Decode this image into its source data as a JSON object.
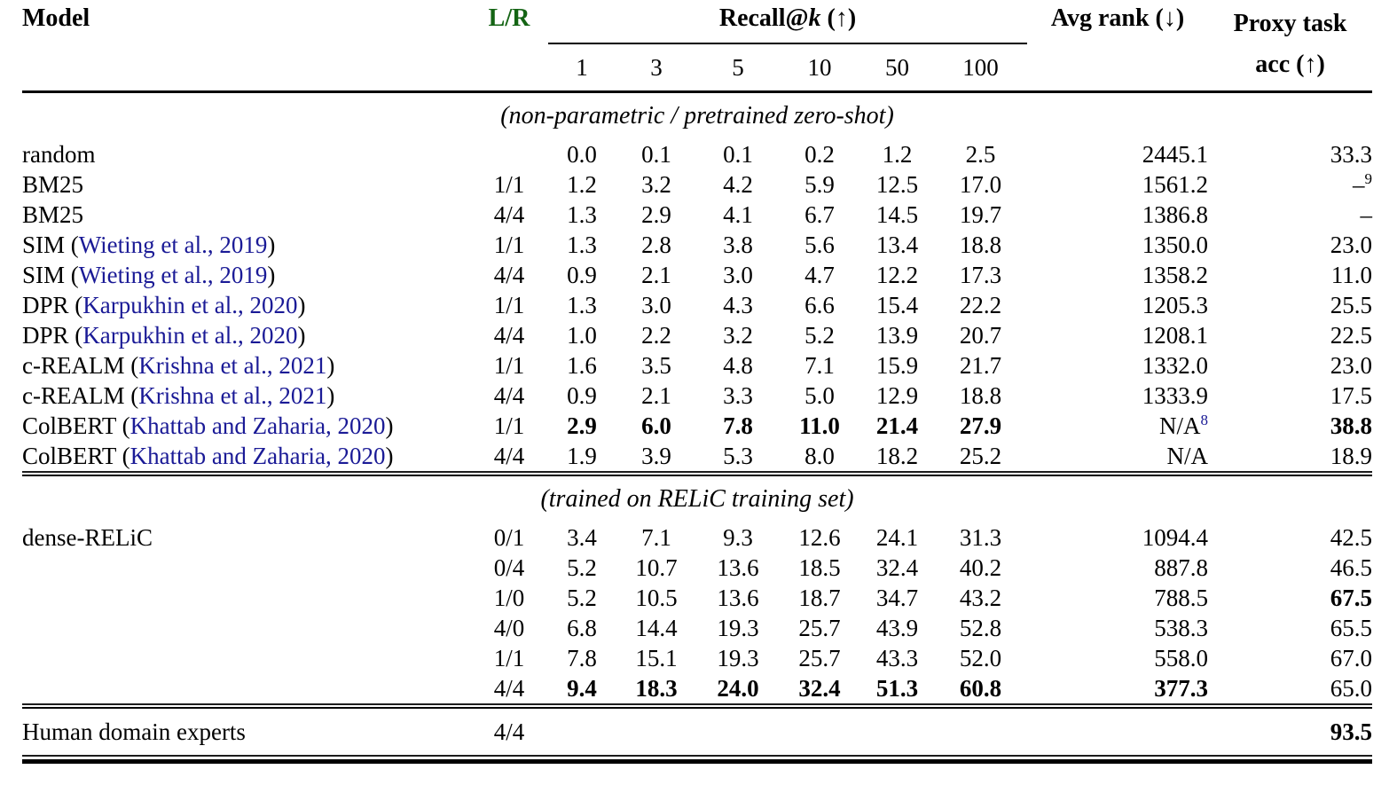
{
  "colors": {
    "header_green": "#146414",
    "citation_blue": "#1a1a96",
    "text_black": "#000000"
  },
  "header": {
    "model": "Model",
    "lr": "L/R",
    "recall_prefix": "Recall@",
    "recall_k": "k",
    "recall_suffix": " (↑)",
    "recall_ks": [
      "1",
      "3",
      "5",
      "10",
      "50",
      "100"
    ],
    "avg_rank": "Avg rank (↓)",
    "proxy_line1": "Proxy task",
    "proxy_line2": "acc (↑)"
  },
  "sections": [
    {
      "label": "(non-parametric / pretrained zero-shot)",
      "rows": [
        {
          "model": {
            "pre": "random",
            "cite": "",
            "post": ""
          },
          "lr": "",
          "recall": [
            "0.0",
            "0.1",
            "0.1",
            "0.2",
            "1.2",
            "2.5"
          ],
          "recall_bold": false,
          "avg": "2445.1",
          "avg_sup": "",
          "avg_bold": false,
          "proxy": "33.3",
          "proxy_sup": "",
          "proxy_bold": false
        },
        {
          "model": {
            "pre": "BM25",
            "cite": "",
            "post": ""
          },
          "lr": "1/1",
          "recall": [
            "1.2",
            "3.2",
            "4.2",
            "5.9",
            "12.5",
            "17.0"
          ],
          "recall_bold": false,
          "avg": "1561.2",
          "avg_sup": "",
          "avg_bold": false,
          "proxy": "–",
          "proxy_sup": "9",
          "proxy_bold": false
        },
        {
          "model": {
            "pre": "BM25",
            "cite": "",
            "post": ""
          },
          "lr": "4/4",
          "recall": [
            "1.3",
            "2.9",
            "4.1",
            "6.7",
            "14.5",
            "19.7"
          ],
          "recall_bold": false,
          "avg": "1386.8",
          "avg_sup": "",
          "avg_bold": false,
          "proxy": "–",
          "proxy_sup": "",
          "proxy_bold": false
        },
        {
          "model": {
            "pre": "SIM (",
            "cite": "Wieting et al., 2019",
            "post": ")"
          },
          "lr": "1/1",
          "recall": [
            "1.3",
            "2.8",
            "3.8",
            "5.6",
            "13.4",
            "18.8"
          ],
          "recall_bold": false,
          "avg": "1350.0",
          "avg_sup": "",
          "avg_bold": false,
          "proxy": "23.0",
          "proxy_sup": "",
          "proxy_bold": false
        },
        {
          "model": {
            "pre": "SIM (",
            "cite": "Wieting et al., 2019",
            "post": ")"
          },
          "lr": "4/4",
          "recall": [
            "0.9",
            "2.1",
            "3.0",
            "4.7",
            "12.2",
            "17.3"
          ],
          "recall_bold": false,
          "avg": "1358.2",
          "avg_sup": "",
          "avg_bold": false,
          "proxy": "11.0",
          "proxy_sup": "",
          "proxy_bold": false
        },
        {
          "model": {
            "pre": "DPR (",
            "cite": "Karpukhin et al., 2020",
            "post": ")"
          },
          "lr": "1/1",
          "recall": [
            "1.3",
            "3.0",
            "4.3",
            "6.6",
            "15.4",
            "22.2"
          ],
          "recall_bold": false,
          "avg": "1205.3",
          "avg_sup": "",
          "avg_bold": false,
          "proxy": "25.5",
          "proxy_sup": "",
          "proxy_bold": false
        },
        {
          "model": {
            "pre": "DPR (",
            "cite": "Karpukhin et al., 2020",
            "post": ")"
          },
          "lr": "4/4",
          "recall": [
            "1.0",
            "2.2",
            "3.2",
            "5.2",
            "13.9",
            "20.7"
          ],
          "recall_bold": false,
          "avg": "1208.1",
          "avg_sup": "",
          "avg_bold": false,
          "proxy": "22.5",
          "proxy_sup": "",
          "proxy_bold": false
        },
        {
          "model": {
            "pre": "c-REALM (",
            "cite": "Krishna et al., 2021",
            "post": ")"
          },
          "lr": "1/1",
          "recall": [
            "1.6",
            "3.5",
            "4.8",
            "7.1",
            "15.9",
            "21.7"
          ],
          "recall_bold": false,
          "avg": "1332.0",
          "avg_sup": "",
          "avg_bold": false,
          "proxy": "23.0",
          "proxy_sup": "",
          "proxy_bold": false
        },
        {
          "model": {
            "pre": "c-REALM (",
            "cite": "Krishna et al., 2021",
            "post": ")"
          },
          "lr": "4/4",
          "recall": [
            "0.9",
            "2.1",
            "3.3",
            "5.0",
            "12.9",
            "18.8"
          ],
          "recall_bold": false,
          "avg": "1333.9",
          "avg_sup": "",
          "avg_bold": false,
          "proxy": "17.5",
          "proxy_sup": "",
          "proxy_bold": false
        },
        {
          "model": {
            "pre": "ColBERT (",
            "cite": "Khattab and Zaharia, 2020",
            "post": ")"
          },
          "lr": "1/1",
          "recall": [
            "2.9",
            "6.0",
            "7.8",
            "11.0",
            "21.4",
            "27.9"
          ],
          "recall_bold": true,
          "avg": "N/A",
          "avg_sup": "8",
          "avg_bold": false,
          "proxy": "38.8",
          "proxy_sup": "",
          "proxy_bold": true
        },
        {
          "model": {
            "pre": "ColBERT (",
            "cite": "Khattab and Zaharia, 2020",
            "post": ")"
          },
          "lr": "4/4",
          "recall": [
            "1.9",
            "3.9",
            "5.3",
            "8.0",
            "18.2",
            "25.2"
          ],
          "recall_bold": false,
          "avg": "N/A",
          "avg_sup": "",
          "avg_bold": false,
          "proxy": "18.9",
          "proxy_sup": "",
          "proxy_bold": false
        }
      ]
    },
    {
      "label": "(trained on RELiC training set)",
      "rows": [
        {
          "model": {
            "pre": "dense-RELiC",
            "cite": "",
            "post": ""
          },
          "lr": "0/1",
          "recall": [
            "3.4",
            "7.1",
            "9.3",
            "12.6",
            "24.1",
            "31.3"
          ],
          "recall_bold": false,
          "avg": "1094.4",
          "avg_sup": "",
          "avg_bold": false,
          "proxy": "42.5",
          "proxy_sup": "",
          "proxy_bold": false
        },
        {
          "model": {
            "pre": "",
            "cite": "",
            "post": ""
          },
          "lr": "0/4",
          "recall": [
            "5.2",
            "10.7",
            "13.6",
            "18.5",
            "32.4",
            "40.2"
          ],
          "recall_bold": false,
          "avg": "887.8",
          "avg_sup": "",
          "avg_bold": false,
          "proxy": "46.5",
          "proxy_sup": "",
          "proxy_bold": false
        },
        {
          "model": {
            "pre": "",
            "cite": "",
            "post": ""
          },
          "lr": "1/0",
          "recall": [
            "5.2",
            "10.5",
            "13.6",
            "18.7",
            "34.7",
            "43.2"
          ],
          "recall_bold": false,
          "avg": "788.5",
          "avg_sup": "",
          "avg_bold": false,
          "proxy": "67.5",
          "proxy_sup": "",
          "proxy_bold": true
        },
        {
          "model": {
            "pre": "",
            "cite": "",
            "post": ""
          },
          "lr": "4/0",
          "recall": [
            "6.8",
            "14.4",
            "19.3",
            "25.7",
            "43.9",
            "52.8"
          ],
          "recall_bold": false,
          "avg": "538.3",
          "avg_sup": "",
          "avg_bold": false,
          "proxy": "65.5",
          "proxy_sup": "",
          "proxy_bold": false
        },
        {
          "model": {
            "pre": "",
            "cite": "",
            "post": ""
          },
          "lr": "1/1",
          "recall": [
            "7.8",
            "15.1",
            "19.3",
            "25.7",
            "43.3",
            "52.0"
          ],
          "recall_bold": false,
          "avg": "558.0",
          "avg_sup": "",
          "avg_bold": false,
          "proxy": "67.0",
          "proxy_sup": "",
          "proxy_bold": false
        },
        {
          "model": {
            "pre": "",
            "cite": "",
            "post": ""
          },
          "lr": "4/4",
          "recall": [
            "9.4",
            "18.3",
            "24.0",
            "32.4",
            "51.3",
            "60.8"
          ],
          "recall_bold": true,
          "avg": "377.3",
          "avg_sup": "",
          "avg_bold": true,
          "proxy": "65.0",
          "proxy_sup": "",
          "proxy_bold": false
        }
      ]
    }
  ],
  "footer_row": {
    "model": "Human domain experts",
    "lr": "4/4",
    "proxy": "93.5"
  }
}
